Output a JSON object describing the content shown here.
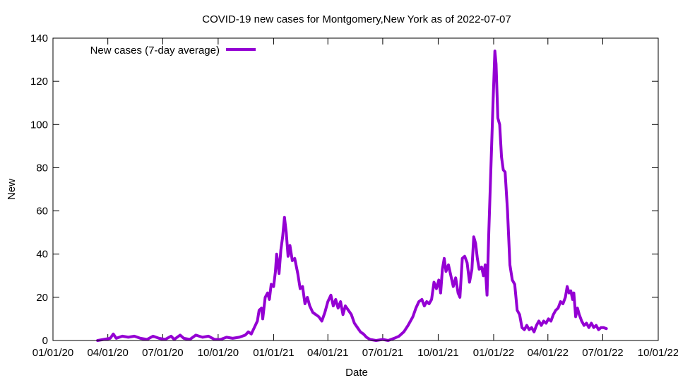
{
  "chart_data": {
    "type": "line",
    "title": "COVID-19 new cases for Montgomery,New York as of 2022-07-07",
    "xlabel": "Date",
    "ylabel": "New",
    "legend": {
      "placement": "top-left",
      "label": "New cases (7-day average)"
    },
    "grid": false,
    "x_range": [
      "2020-01-01",
      "2022-10-01"
    ],
    "ylim": [
      0,
      140
    ],
    "x_ticks": [
      {
        "date": "2020-01-01",
        "label": "01/01/20"
      },
      {
        "date": "2020-04-01",
        "label": "04/01/20"
      },
      {
        "date": "2020-07-01",
        "label": "07/01/20"
      },
      {
        "date": "2020-10-01",
        "label": "10/01/20"
      },
      {
        "date": "2021-01-01",
        "label": "01/01/21"
      },
      {
        "date": "2021-04-01",
        "label": "04/01/21"
      },
      {
        "date": "2021-07-01",
        "label": "07/01/21"
      },
      {
        "date": "2021-10-01",
        "label": "10/01/21"
      },
      {
        "date": "2022-01-01",
        "label": "01/01/22"
      },
      {
        "date": "2022-04-01",
        "label": "04/01/22"
      },
      {
        "date": "2022-07-01",
        "label": "07/01/22"
      },
      {
        "date": "2022-10-01",
        "label": "10/01/22"
      }
    ],
    "y_ticks": [
      0,
      20,
      40,
      60,
      80,
      100,
      120,
      140
    ],
    "series": [
      {
        "name": "New cases (7-day average)",
        "color": "#9400d3",
        "points": [
          [
            "2020-03-15",
            0
          ],
          [
            "2020-03-25",
            0.5
          ],
          [
            "2020-04-05",
            1
          ],
          [
            "2020-04-10",
            3
          ],
          [
            "2020-04-15",
            1
          ],
          [
            "2020-04-25",
            2
          ],
          [
            "2020-05-05",
            1.5
          ],
          [
            "2020-05-15",
            2
          ],
          [
            "2020-05-25",
            1
          ],
          [
            "2020-06-05",
            0.5
          ],
          [
            "2020-06-15",
            2
          ],
          [
            "2020-06-25",
            1
          ],
          [
            "2020-07-05",
            0.5
          ],
          [
            "2020-07-15",
            2
          ],
          [
            "2020-07-20",
            0.5
          ],
          [
            "2020-07-30",
            2.5
          ],
          [
            "2020-08-05",
            1
          ],
          [
            "2020-08-15",
            0.5
          ],
          [
            "2020-08-25",
            2.5
          ],
          [
            "2020-09-05",
            1.5
          ],
          [
            "2020-09-15",
            2
          ],
          [
            "2020-09-25",
            0.5
          ],
          [
            "2020-10-05",
            0.5
          ],
          [
            "2020-10-15",
            1.5
          ],
          [
            "2020-10-25",
            1
          ],
          [
            "2020-11-05",
            1.5
          ],
          [
            "2020-11-15",
            2.5
          ],
          [
            "2020-11-20",
            4
          ],
          [
            "2020-11-25",
            3
          ],
          [
            "2020-11-30",
            6
          ],
          [
            "2020-12-05",
            9
          ],
          [
            "2020-12-08",
            14
          ],
          [
            "2020-12-12",
            15
          ],
          [
            "2020-12-14",
            10
          ],
          [
            "2020-12-18",
            20
          ],
          [
            "2020-12-22",
            22
          ],
          [
            "2020-12-25",
            19
          ],
          [
            "2020-12-28",
            26
          ],
          [
            "2021-01-01",
            25
          ],
          [
            "2021-01-04",
            32
          ],
          [
            "2021-01-06",
            40
          ],
          [
            "2021-01-08",
            36
          ],
          [
            "2021-01-10",
            31
          ],
          [
            "2021-01-13",
            42
          ],
          [
            "2021-01-16",
            48
          ],
          [
            "2021-01-19",
            57
          ],
          [
            "2021-01-22",
            50
          ],
          [
            "2021-01-25",
            39
          ],
          [
            "2021-01-28",
            44
          ],
          [
            "2021-02-01",
            37
          ],
          [
            "2021-02-05",
            38
          ],
          [
            "2021-02-10",
            31
          ],
          [
            "2021-02-14",
            24
          ],
          [
            "2021-02-18",
            25
          ],
          [
            "2021-02-22",
            17
          ],
          [
            "2021-02-26",
            20
          ],
          [
            "2021-03-02",
            16
          ],
          [
            "2021-03-07",
            13
          ],
          [
            "2021-03-12",
            12
          ],
          [
            "2021-03-17",
            11
          ],
          [
            "2021-03-22",
            9
          ],
          [
            "2021-03-27",
            13
          ],
          [
            "2021-04-01",
            18
          ],
          [
            "2021-04-06",
            21
          ],
          [
            "2021-04-10",
            16
          ],
          [
            "2021-04-14",
            19
          ],
          [
            "2021-04-18",
            15
          ],
          [
            "2021-04-22",
            18
          ],
          [
            "2021-04-26",
            12
          ],
          [
            "2021-04-30",
            16
          ],
          [
            "2021-05-05",
            14
          ],
          [
            "2021-05-10",
            12
          ],
          [
            "2021-05-15",
            8
          ],
          [
            "2021-05-20",
            6
          ],
          [
            "2021-05-25",
            4
          ],
          [
            "2021-05-30",
            3
          ],
          [
            "2021-06-04",
            1.5
          ],
          [
            "2021-06-10",
            0.5
          ],
          [
            "2021-06-20",
            0
          ],
          [
            "2021-07-01",
            0.5
          ],
          [
            "2021-07-10",
            0
          ],
          [
            "2021-07-20",
            1
          ],
          [
            "2021-07-28",
            2
          ],
          [
            "2021-08-05",
            4
          ],
          [
            "2021-08-12",
            7
          ],
          [
            "2021-08-20",
            11
          ],
          [
            "2021-08-25",
            15
          ],
          [
            "2021-08-30",
            18
          ],
          [
            "2021-09-04",
            19
          ],
          [
            "2021-09-08",
            16
          ],
          [
            "2021-09-12",
            18
          ],
          [
            "2021-09-16",
            17
          ],
          [
            "2021-09-20",
            19
          ],
          [
            "2021-09-24",
            27
          ],
          [
            "2021-09-28",
            24
          ],
          [
            "2021-10-02",
            28
          ],
          [
            "2021-10-05",
            22
          ],
          [
            "2021-10-08",
            33
          ],
          [
            "2021-10-11",
            38
          ],
          [
            "2021-10-14",
            32
          ],
          [
            "2021-10-18",
            35
          ],
          [
            "2021-10-22",
            30
          ],
          [
            "2021-10-26",
            25
          ],
          [
            "2021-10-30",
            29
          ],
          [
            "2021-11-03",
            22
          ],
          [
            "2021-11-06",
            20
          ],
          [
            "2021-11-10",
            38
          ],
          [
            "2021-11-14",
            39
          ],
          [
            "2021-11-18",
            36
          ],
          [
            "2021-11-22",
            27
          ],
          [
            "2021-11-26",
            33
          ],
          [
            "2021-11-29",
            48
          ],
          [
            "2021-12-02",
            45
          ],
          [
            "2021-12-05",
            38
          ],
          [
            "2021-12-08",
            33
          ],
          [
            "2021-12-12",
            34
          ],
          [
            "2021-12-15",
            30
          ],
          [
            "2021-12-18",
            35
          ],
          [
            "2021-12-21",
            21
          ],
          [
            "2021-12-24",
            50
          ],
          [
            "2021-12-28",
            85
          ],
          [
            "2021-12-31",
            110
          ],
          [
            "2022-01-03",
            134
          ],
          [
            "2022-01-05",
            128
          ],
          [
            "2022-01-08",
            103
          ],
          [
            "2022-01-11",
            100
          ],
          [
            "2022-01-14",
            85
          ],
          [
            "2022-01-17",
            79
          ],
          [
            "2022-01-20",
            78
          ],
          [
            "2022-01-24",
            60
          ],
          [
            "2022-01-28",
            35
          ],
          [
            "2022-02-01",
            28
          ],
          [
            "2022-02-05",
            26
          ],
          [
            "2022-02-09",
            14
          ],
          [
            "2022-02-13",
            12
          ],
          [
            "2022-02-17",
            6
          ],
          [
            "2022-02-21",
            5
          ],
          [
            "2022-02-25",
            7
          ],
          [
            "2022-03-01",
            5
          ],
          [
            "2022-03-05",
            6
          ],
          [
            "2022-03-09",
            4
          ],
          [
            "2022-03-13",
            7
          ],
          [
            "2022-03-17",
            9
          ],
          [
            "2022-03-21",
            7
          ],
          [
            "2022-03-25",
            9
          ],
          [
            "2022-03-29",
            8
          ],
          [
            "2022-04-02",
            10
          ],
          [
            "2022-04-06",
            9
          ],
          [
            "2022-04-10",
            12
          ],
          [
            "2022-04-14",
            14
          ],
          [
            "2022-04-18",
            15
          ],
          [
            "2022-04-22",
            18
          ],
          [
            "2022-04-26",
            17
          ],
          [
            "2022-04-30",
            20
          ],
          [
            "2022-05-03",
            25
          ],
          [
            "2022-05-06",
            22
          ],
          [
            "2022-05-09",
            23
          ],
          [
            "2022-05-12",
            19
          ],
          [
            "2022-05-14",
            22
          ],
          [
            "2022-05-17",
            11
          ],
          [
            "2022-05-20",
            15
          ],
          [
            "2022-05-23",
            12
          ],
          [
            "2022-05-27",
            9
          ],
          [
            "2022-05-31",
            7
          ],
          [
            "2022-06-04",
            8
          ],
          [
            "2022-06-08",
            6
          ],
          [
            "2022-06-12",
            8
          ],
          [
            "2022-06-16",
            6
          ],
          [
            "2022-06-20",
            7
          ],
          [
            "2022-06-24",
            5
          ],
          [
            "2022-06-28",
            6
          ],
          [
            "2022-07-02",
            6
          ],
          [
            "2022-07-07",
            5.5
          ]
        ]
      }
    ]
  }
}
